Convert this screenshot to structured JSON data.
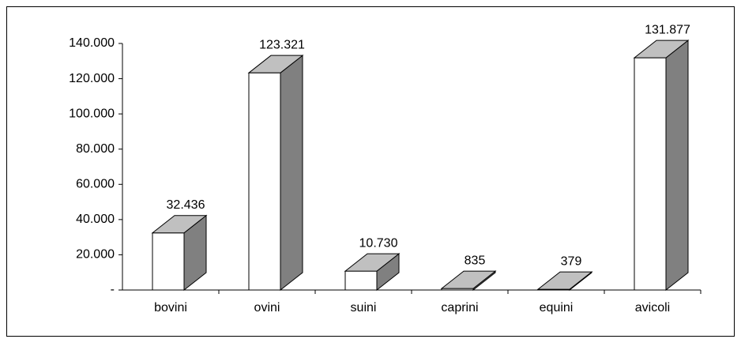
{
  "chart_data": {
    "type": "bar3d",
    "categories": [
      "bovini",
      "ovini",
      "suini",
      "caprini",
      "equini",
      "avicoli"
    ],
    "values": [
      32436,
      123321,
      10730,
      835,
      379,
      131877
    ],
    "value_labels": [
      "32.436",
      "123.321",
      "10.730",
      "835",
      "379",
      "131.877"
    ],
    "colors": {
      "front": "#ffffff",
      "side": "#808080",
      "top": "#c0c0c0"
    },
    "ylim": [
      0,
      140000
    ],
    "yticks": [
      {
        "value": 0,
        "label": "-"
      },
      {
        "value": 20000,
        "label": "20.000"
      },
      {
        "value": 40000,
        "label": "40.000"
      },
      {
        "value": 60000,
        "label": "60.000"
      },
      {
        "value": 80000,
        "label": "80.000"
      },
      {
        "value": 100000,
        "label": "100.000"
      },
      {
        "value": 120000,
        "label": "120.000"
      },
      {
        "value": 140000,
        "label": "140.000"
      }
    ],
    "grid": false
  }
}
